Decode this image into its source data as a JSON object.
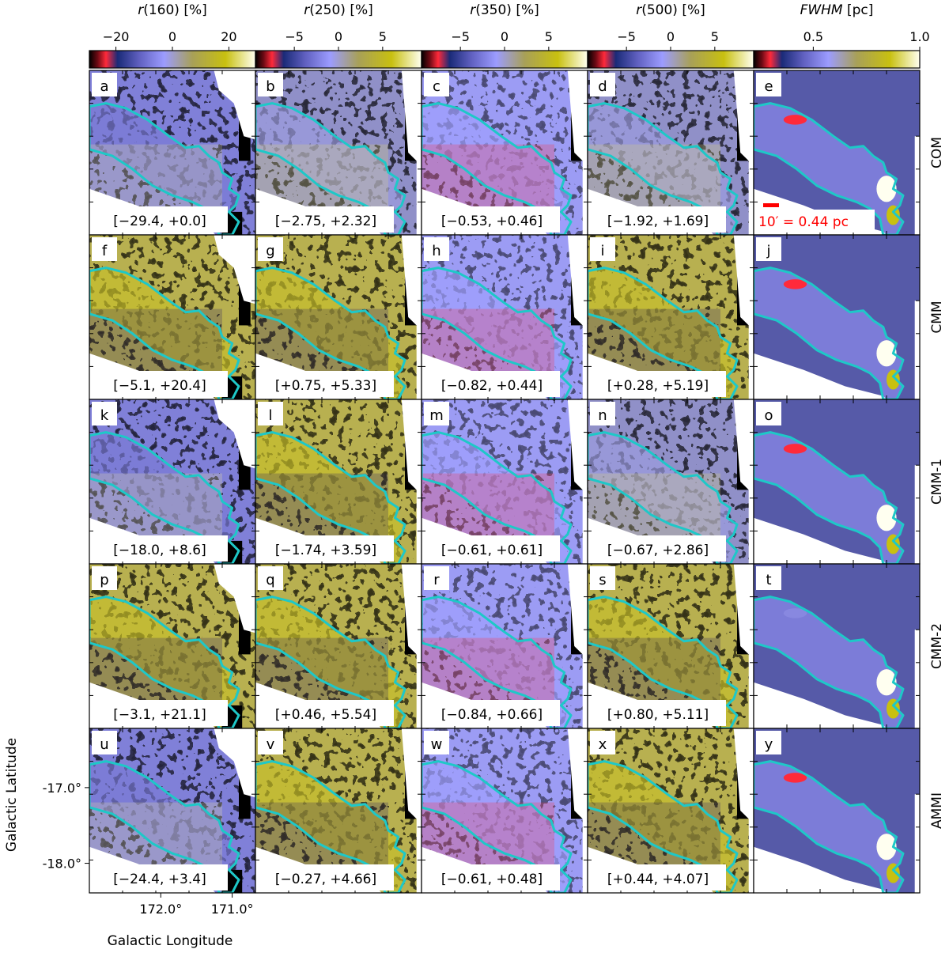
{
  "figure": {
    "columns": [
      {
        "title": "r(160) [%]",
        "title_italic": "r",
        "title_rest": "(160) [%]",
        "cbar_ticks": [
          -20,
          0,
          20
        ],
        "cbar_range": [
          -29.4,
          29.4
        ]
      },
      {
        "title": "r(250) [%]",
        "title_italic": "r",
        "title_rest": "(250) [%]",
        "cbar_ticks": [
          -5,
          0,
          5
        ],
        "cbar_range": [
          -9.4,
          9.4
        ]
      },
      {
        "title": "r(350) [%]",
        "title_italic": "r",
        "title_rest": "(350) [%]",
        "cbar_ticks": [
          -5,
          0,
          5
        ],
        "cbar_range": [
          -9.4,
          9.4
        ]
      },
      {
        "title": "r(500) [%]",
        "title_italic": "r",
        "title_rest": "(500) [%]",
        "cbar_ticks": [
          -5,
          0,
          5
        ],
        "cbar_range": [
          -9.4,
          9.4
        ]
      },
      {
        "title": "FWHM [pc]",
        "title_italic": "FWHM",
        "title_rest": " [pc]",
        "cbar_ticks": [
          0.5,
          1.0
        ],
        "cbar_tick_labels": [
          "0.5",
          "1.0"
        ],
        "cbar_range": [
          0.22,
          1.0
        ]
      }
    ],
    "rows": [
      "COM",
      "CMM",
      "CMM-1",
      "CMM-2",
      "AMMI"
    ],
    "panels": [
      [
        {
          "letter": "a",
          "range": "[−29.4, +0.0]"
        },
        {
          "letter": "b",
          "range": "[−2.75, +2.32]"
        },
        {
          "letter": "c",
          "range": "[−0.53, +0.46]"
        },
        {
          "letter": "d",
          "range": "[−1.92, +1.69]"
        },
        {
          "letter": "e",
          "range": ""
        }
      ],
      [
        {
          "letter": "f",
          "range": "[−5.1, +20.4]"
        },
        {
          "letter": "g",
          "range": "[+0.75, +5.33]"
        },
        {
          "letter": "h",
          "range": "[−0.82, +0.44]"
        },
        {
          "letter": "i",
          "range": "[+0.28, +5.19]"
        },
        {
          "letter": "j",
          "range": ""
        }
      ],
      [
        {
          "letter": "k",
          "range": "[−18.0, +8.6]"
        },
        {
          "letter": "l",
          "range": "[−1.74, +3.59]"
        },
        {
          "letter": "m",
          "range": "[−0.61, +0.61]"
        },
        {
          "letter": "n",
          "range": "[−0.67, +2.86]"
        },
        {
          "letter": "o",
          "range": ""
        }
      ],
      [
        {
          "letter": "p",
          "range": "[−3.1, +21.1]"
        },
        {
          "letter": "q",
          "range": "[+0.46, +5.54]"
        },
        {
          "letter": "r",
          "range": "[−0.84, +0.66]"
        },
        {
          "letter": "s",
          "range": "[+0.80, +5.11]"
        },
        {
          "letter": "t",
          "range": ""
        }
      ],
      [
        {
          "letter": "u",
          "range": "[−24.4, +3.4]"
        },
        {
          "letter": "v",
          "range": "[−0.27, +4.66]"
        },
        {
          "letter": "w",
          "range": "[−0.61, +0.48]"
        },
        {
          "letter": "x",
          "range": "[+0.44, +4.07]"
        },
        {
          "letter": "y",
          "range": ""
        }
      ]
    ],
    "scale_bar": "10′ = 0.44 pc",
    "xlabel": "Galactic Longitude",
    "ylabel": "Galactic Latitude",
    "x_tick_labels": [
      "172.0°",
      "171.0°"
    ],
    "y_tick_labels": [
      "-17.0°",
      "-18.0°"
    ],
    "colors": {
      "contour": "#1ec8c8",
      "scale_bar": "#ff0000",
      "background_fill": "#565aa8",
      "cmap": [
        "#000000",
        "#6e0a14",
        "#ff2a3a",
        "#1a2a78",
        "#6060c0",
        "#9c9cff",
        "#a8a058",
        "#c8c010",
        "#fffff0"
      ]
    }
  },
  "chart_data": {
    "type": "heatmap",
    "layout": "5x5 grid of sky maps",
    "xlabel": "Galactic Longitude",
    "ylabel": "Galactic Latitude",
    "x_ticks": [
      172.0,
      171.0
    ],
    "y_ticks": [
      -17.0,
      -18.0
    ],
    "series": [
      {
        "name": "COM",
        "panel_ranges": [
          [
            -29.4,
            0.0
          ],
          [
            -2.75,
            2.32
          ],
          [
            -0.53,
            0.46
          ],
          [
            -1.92,
            1.69
          ]
        ]
      },
      {
        "name": "CMM",
        "panel_ranges": [
          [
            -5.1,
            20.4
          ],
          [
            0.75,
            5.33
          ],
          [
            -0.82,
            0.44
          ],
          [
            0.28,
            5.19
          ]
        ]
      },
      {
        "name": "CMM-1",
        "panel_ranges": [
          [
            -18.0,
            8.6
          ],
          [
            -1.74,
            3.59
          ],
          [
            -0.61,
            0.61
          ],
          [
            -0.67,
            2.86
          ]
        ]
      },
      {
        "name": "CMM-2",
        "panel_ranges": [
          [
            -3.1,
            21.1
          ],
          [
            0.46,
            5.54
          ],
          [
            -0.84,
            0.66
          ],
          [
            0.8,
            5.11
          ]
        ]
      },
      {
        "name": "AMMI",
        "panel_ranges": [
          [
            -24.4,
            3.4
          ],
          [
            -0.27,
            4.66
          ],
          [
            -0.61,
            0.48
          ],
          [
            0.44,
            4.07
          ]
        ]
      }
    ],
    "colorbars": [
      {
        "label": "r(160) [%]",
        "ticks": [
          -20,
          0,
          20
        ]
      },
      {
        "label": "r(250) [%]",
        "ticks": [
          -5,
          0,
          5
        ]
      },
      {
        "label": "r(350) [%]",
        "ticks": [
          -5,
          0,
          5
        ]
      },
      {
        "label": "r(500) [%]",
        "ticks": [
          -5,
          0,
          5
        ]
      },
      {
        "label": "FWHM [pc]",
        "ticks": [
          0.5,
          1.0
        ]
      }
    ]
  }
}
